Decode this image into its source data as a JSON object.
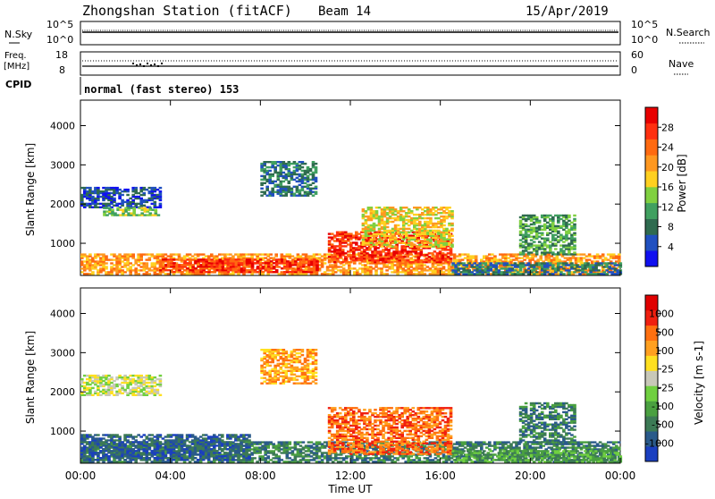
{
  "header": {
    "station": "Zhongshan Station (fitACF)",
    "beam": "Beam 14",
    "date": "15/Apr/2019"
  },
  "panels": {
    "nsky_label": "N.Sky",
    "nsky_ticks": [
      "10^5",
      "10^0"
    ],
    "nsearch_label": "N.Search",
    "nsearch_ticks": [
      "10^5",
      "10^0"
    ],
    "freq_label_1": "Freq.",
    "freq_label_2": "[MHz]",
    "freq_ticks": [
      "18",
      "8"
    ],
    "nave_label": "Nave",
    "nave_ticks": [
      "60",
      "0"
    ],
    "cpid_label": "CPID",
    "cpid_text": "normal (fast stereo) 153"
  },
  "chart_data": [
    {
      "type": "heatmap",
      "title": "",
      "xlabel": "",
      "ylabel": "Slant Range [km]",
      "y_ticks": [
        "1000",
        "2000",
        "3000",
        "4000"
      ],
      "ylim": [
        180,
        4650
      ],
      "colorbar": {
        "label": "Power [dB]",
        "ticks": [
          "4",
          "8",
          "12",
          "16",
          "20",
          "24",
          "28"
        ],
        "colors": [
          "#1010f0",
          "#2050c0",
          "#2f6b4f",
          "#40a060",
          "#80d040",
          "#ffd020",
          "#ff9820",
          "#ff6a10",
          "#ff3010",
          "#e80000"
        ]
      },
      "echo_regions": [
        {
          "t0": 0.0,
          "t1": 24.0,
          "r0": 200,
          "r1": 700,
          "level": 6
        },
        {
          "t0": 3.5,
          "t1": 10.5,
          "r0": 250,
          "r1": 600,
          "level": 8
        },
        {
          "t0": 11.0,
          "t1": 16.5,
          "r0": 500,
          "r1": 1300,
          "level": 8
        },
        {
          "t0": 12.5,
          "t1": 16.5,
          "r0": 900,
          "r1": 1900,
          "level": 5
        },
        {
          "t0": 0.0,
          "t1": 3.5,
          "r0": 1900,
          "r1": 2400,
          "level": 1
        },
        {
          "t0": 1.0,
          "t1": 3.5,
          "r0": 1700,
          "r1": 1900,
          "level": 4
        },
        {
          "t0": 8.0,
          "t1": 10.5,
          "r0": 2200,
          "r1": 3100,
          "level": 2
        },
        {
          "t0": 19.5,
          "t1": 22.0,
          "r0": 700,
          "r1": 1700,
          "level": 3
        },
        {
          "t0": 16.5,
          "t1": 24.0,
          "r0": 200,
          "r1": 500,
          "level": 2
        }
      ]
    },
    {
      "type": "heatmap",
      "title": "",
      "xlabel": "Time UT",
      "ylabel": "Slant Range [km]",
      "x_ticks": [
        "00:00",
        "04:00",
        "08:00",
        "12:00",
        "16:00",
        "20:00",
        "00:00"
      ],
      "y_ticks": [
        "1000",
        "2000",
        "3000",
        "4000"
      ],
      "ylim": [
        180,
        4650
      ],
      "colorbar": {
        "label": "Velocity [m s-1]",
        "ticks": [
          "1000",
          "500",
          "100",
          "25",
          "-25",
          "-100",
          "-500",
          "-1000"
        ],
        "colors": [
          "#1a3fc0",
          "#2a5a8a",
          "#3c7a55",
          "#4aa040",
          "#70d040",
          "#c8c8b8",
          "#ffe020",
          "#ffa020",
          "#ff7010",
          "#f02010",
          "#e00000"
        ]
      },
      "echo_regions": [
        {
          "t0": 0.0,
          "t1": 24.0,
          "r0": 200,
          "r1": 700,
          "level": 2
        },
        {
          "t0": 0.0,
          "t1": 7.5,
          "r0": 250,
          "r1": 900,
          "level": 1
        },
        {
          "t0": 11.0,
          "t1": 16.5,
          "r0": 400,
          "r1": 1600,
          "level": 8
        },
        {
          "t0": 0.0,
          "t1": 3.5,
          "r0": 1900,
          "r1": 2400,
          "level": 5
        },
        {
          "t0": 8.0,
          "t1": 10.5,
          "r0": 2200,
          "r1": 3100,
          "level": 7
        },
        {
          "t0": 16.5,
          "t1": 24.0,
          "r0": 200,
          "r1": 500,
          "level": 3
        },
        {
          "t0": 19.5,
          "t1": 22.0,
          "r0": 700,
          "r1": 1700,
          "level": 2
        }
      ]
    }
  ]
}
